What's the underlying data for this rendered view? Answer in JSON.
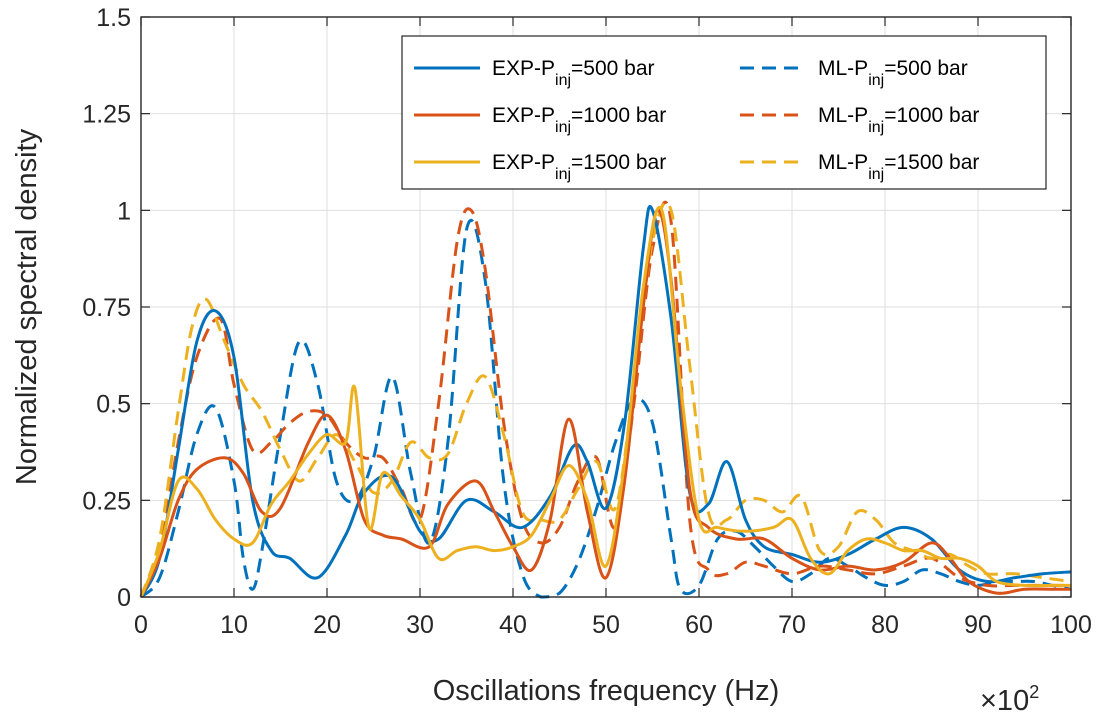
{
  "chart_data": {
    "type": "line",
    "title": "",
    "xlabel": "Oscillations frequency (Hz)",
    "ylabel": "Normalized spectral density",
    "x_exponent_label": "×10",
    "x_exponent_power": "2",
    "xlim": [
      0,
      100
    ],
    "ylim": [
      0,
      1.5
    ],
    "xticks": [
      0,
      10,
      20,
      30,
      40,
      50,
      60,
      70,
      80,
      90,
      100
    ],
    "yticks": [
      0,
      0.25,
      0.5,
      0.75,
      1,
      1.25,
      1.5
    ],
    "xtick_labels": [
      "0",
      "10",
      "20",
      "30",
      "40",
      "50",
      "60",
      "70",
      "80",
      "90",
      "100"
    ],
    "ytick_labels": [
      "0",
      "0.25",
      "0.5",
      "0.75",
      "1",
      "1.25",
      "1.5"
    ],
    "grid": true,
    "legend_position": "top-right",
    "colors": {
      "blue": "#0072BD",
      "orange": "#D95319",
      "yellow": "#EDB120",
      "grid": "#DFDFDF",
      "axis": "#262626"
    },
    "legend": [
      {
        "label": "EXP-P",
        "sub": "inj",
        "suffix": "=500 bar",
        "color": "#0072BD",
        "style": "solid"
      },
      {
        "label": "ML-P",
        "sub": "inj",
        "suffix": "=500 bar",
        "color": "#0072BD",
        "style": "dashed"
      },
      {
        "label": "EXP-P",
        "sub": "inj",
        "suffix": "=1000 bar",
        "color": "#D95319",
        "style": "solid"
      },
      {
        "label": "ML-P",
        "sub": "inj",
        "suffix": "=1000 bar",
        "color": "#D95319",
        "style": "dashed"
      },
      {
        "label": "EXP-P",
        "sub": "inj",
        "suffix": "=1500 bar",
        "color": "#EDB120",
        "style": "solid"
      },
      {
        "label": "ML-P",
        "sub": "inj",
        "suffix": "=1500 bar",
        "color": "#EDB120",
        "style": "dashed"
      }
    ],
    "series": [
      {
        "name": "EXP-Pinj=500 bar",
        "color": "#0072BD",
        "style": "solid",
        "x": [
          0,
          2,
          4,
          6,
          8,
          10,
          12,
          14,
          16,
          19,
          22,
          24,
          27,
          30,
          32,
          35,
          38,
          41,
          44,
          46.5,
          48,
          50,
          52,
          54,
          55,
          57,
          59,
          61,
          63,
          65,
          67,
          70,
          73,
          76,
          79,
          82,
          85,
          88,
          91,
          94,
          97,
          100
        ],
        "y": [
          0,
          0.1,
          0.38,
          0.66,
          0.74,
          0.62,
          0.25,
          0.12,
          0.1,
          0.05,
          0.16,
          0.27,
          0.31,
          0.17,
          0.15,
          0.25,
          0.22,
          0.18,
          0.26,
          0.39,
          0.35,
          0.23,
          0.45,
          0.9,
          1.0,
          0.72,
          0.27,
          0.24,
          0.35,
          0.2,
          0.13,
          0.11,
          0.09,
          0.11,
          0.15,
          0.18,
          0.15,
          0.07,
          0.04,
          0.05,
          0.06,
          0.065
        ]
      },
      {
        "name": "ML-Pinj=500 bar",
        "color": "#0072BD",
        "style": "dashed",
        "x": [
          0,
          2,
          4,
          6,
          8,
          10,
          11,
          12,
          13,
          15,
          17,
          19,
          21,
          23,
          25,
          27,
          29,
          31,
          33,
          35,
          37,
          39,
          41,
          43,
          45,
          47,
          49,
          51,
          53,
          55,
          57,
          58,
          60,
          62,
          64,
          66,
          68,
          70,
          72,
          74,
          76,
          78,
          80,
          82,
          84,
          86,
          88,
          90,
          92,
          94,
          96,
          98,
          100
        ],
        "y": [
          0,
          0.05,
          0.22,
          0.42,
          0.49,
          0.3,
          0.1,
          0.02,
          0.12,
          0.42,
          0.66,
          0.55,
          0.3,
          0.25,
          0.36,
          0.57,
          0.32,
          0.14,
          0.4,
          0.95,
          0.82,
          0.3,
          0.06,
          0.0,
          0.01,
          0.09,
          0.23,
          0.4,
          0.51,
          0.45,
          0.15,
          0.02,
          0.03,
          0.15,
          0.17,
          0.13,
          0.08,
          0.04,
          0.06,
          0.1,
          0.08,
          0.05,
          0.03,
          0.04,
          0.07,
          0.06,
          0.04,
          0.03,
          0.04,
          0.04,
          0.04,
          0.03,
          0.02
        ]
      },
      {
        "name": "EXP-Pinj=1000 bar",
        "color": "#D95319",
        "style": "solid",
        "x": [
          0,
          2,
          4,
          6,
          9,
          11,
          13,
          15,
          18,
          20,
          22,
          24,
          26,
          28,
          31,
          33,
          36,
          38,
          40,
          42,
          44,
          46,
          48,
          50,
          52,
          54,
          55.5,
          57,
          59,
          61,
          64,
          67,
          70,
          73,
          76,
          79,
          82,
          85,
          87,
          89,
          92,
          95,
          98,
          100
        ],
        "y": [
          0,
          0.1,
          0.25,
          0.33,
          0.36,
          0.32,
          0.22,
          0.23,
          0.4,
          0.47,
          0.38,
          0.2,
          0.16,
          0.15,
          0.13,
          0.24,
          0.3,
          0.22,
          0.13,
          0.07,
          0.2,
          0.46,
          0.22,
          0.05,
          0.3,
          0.75,
          1.0,
          0.82,
          0.28,
          0.18,
          0.15,
          0.15,
          0.1,
          0.07,
          0.08,
          0.07,
          0.09,
          0.14,
          0.1,
          0.04,
          0.01,
          0.02,
          0.02,
          0.02
        ]
      },
      {
        "name": "ML-Pinj=1000 bar",
        "color": "#D95319",
        "style": "dashed",
        "x": [
          0,
          2,
          4,
          6,
          8.5,
          10,
          12,
          14,
          16,
          18,
          20,
          22,
          24,
          26,
          28,
          30,
          32,
          34,
          35.5,
          37,
          39,
          41,
          43,
          45,
          47,
          49,
          51,
          53,
          55,
          57,
          59,
          61,
          63,
          65,
          67,
          70,
          73,
          76,
          79,
          82,
          85,
          88,
          91,
          94,
          97,
          100
        ],
        "y": [
          0,
          0.12,
          0.4,
          0.62,
          0.72,
          0.55,
          0.38,
          0.4,
          0.45,
          0.48,
          0.47,
          0.4,
          0.36,
          0.36,
          0.28,
          0.2,
          0.5,
          0.92,
          1.0,
          0.85,
          0.45,
          0.2,
          0.14,
          0.18,
          0.3,
          0.36,
          0.18,
          0.5,
          0.9,
          0.97,
          0.2,
          0.07,
          0.06,
          0.09,
          0.08,
          0.06,
          0.08,
          0.07,
          0.06,
          0.08,
          0.1,
          0.05,
          0.03,
          0.03,
          0.03,
          0.03
        ]
      },
      {
        "name": "EXP-Pinj=1500 bar",
        "color": "#EDB120",
        "style": "solid",
        "x": [
          0,
          2,
          4,
          6,
          8,
          10,
          12,
          14,
          16,
          18,
          20,
          22,
          23,
          24.5,
          26,
          28,
          30,
          32,
          34,
          36,
          38,
          40,
          42,
          44,
          46,
          48,
          50,
          52,
          54,
          56,
          58,
          60,
          62,
          65,
          68,
          70,
          72,
          74,
          76,
          78,
          80,
          82,
          84,
          86,
          88,
          90,
          92,
          95,
          98,
          100
        ],
        "y": [
          0,
          0.12,
          0.3,
          0.28,
          0.2,
          0.15,
          0.14,
          0.24,
          0.3,
          0.37,
          0.42,
          0.4,
          0.54,
          0.18,
          0.32,
          0.26,
          0.2,
          0.1,
          0.12,
          0.13,
          0.12,
          0.13,
          0.16,
          0.25,
          0.34,
          0.25,
          0.08,
          0.35,
          0.8,
          1.0,
          0.55,
          0.2,
          0.18,
          0.17,
          0.18,
          0.2,
          0.1,
          0.06,
          0.12,
          0.15,
          0.14,
          0.12,
          0.12,
          0.1,
          0.1,
          0.08,
          0.04,
          0.03,
          0.03,
          0.03
        ]
      },
      {
        "name": "ML-Pinj=1500 bar",
        "color": "#EDB120",
        "style": "dashed",
        "x": [
          0,
          2,
          4,
          5.5,
          7,
          9,
          11,
          13,
          15,
          17,
          19,
          21,
          23,
          25,
          27,
          29,
          31,
          33,
          35,
          37,
          39,
          41,
          43,
          45,
          47,
          49,
          51,
          53,
          55,
          57,
          59,
          61,
          63,
          65,
          67,
          69,
          71,
          73,
          75,
          77,
          79,
          81,
          83,
          85,
          87,
          89,
          91,
          94,
          97,
          100
        ],
        "y": [
          0,
          0.15,
          0.48,
          0.7,
          0.77,
          0.66,
          0.55,
          0.48,
          0.38,
          0.3,
          0.36,
          0.42,
          0.35,
          0.27,
          0.3,
          0.4,
          0.36,
          0.37,
          0.5,
          0.57,
          0.42,
          0.22,
          0.2,
          0.2,
          0.28,
          0.35,
          0.23,
          0.55,
          0.92,
          1.0,
          0.6,
          0.22,
          0.2,
          0.25,
          0.25,
          0.22,
          0.26,
          0.12,
          0.13,
          0.22,
          0.2,
          0.14,
          0.12,
          0.1,
          0.11,
          0.08,
          0.06,
          0.06,
          0.05,
          0.04
        ]
      }
    ]
  }
}
